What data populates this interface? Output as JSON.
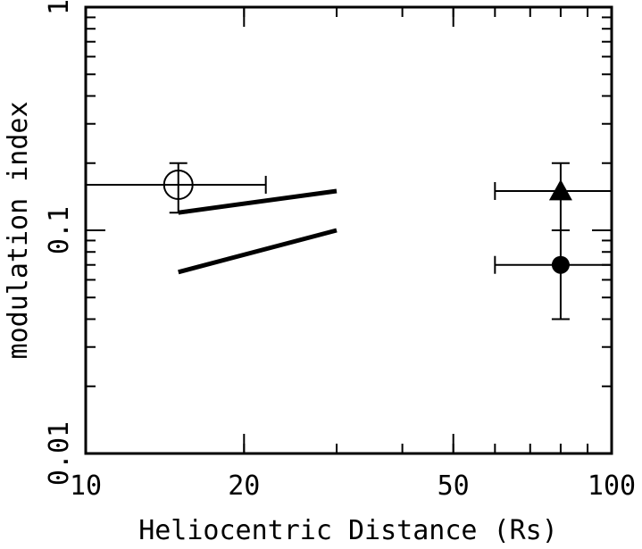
{
  "chart_data": {
    "type": "scatter",
    "title": "",
    "xlabel": "Heliocentric Distance (Rs)",
    "ylabel": "modulation index",
    "xscale": "log",
    "yscale": "log",
    "xlim": [
      10,
      100
    ],
    "ylim": [
      0.01,
      1
    ],
    "x_ticks": [
      {
        "value": 10,
        "label": "10"
      },
      {
        "value": 20,
        "label": "20"
      },
      {
        "value": 50,
        "label": "50"
      },
      {
        "value": 100,
        "label": "100"
      }
    ],
    "y_ticks": [
      {
        "value": 0.01,
        "label": "0.01"
      },
      {
        "value": 0.1,
        "label": "0.1"
      },
      {
        "value": 1,
        "label": "1"
      }
    ],
    "points": [
      {
        "name": "open-circle",
        "marker": "open-circle",
        "x": 15,
        "y": 0.16,
        "xerr": [
          10,
          22
        ],
        "yerr": [
          0.12,
          0.2
        ]
      },
      {
        "name": "filled-triangle",
        "marker": "filled-triangle",
        "x": 80,
        "y": 0.15,
        "xerr": [
          60,
          100
        ],
        "yerr": [
          0.1,
          0.2
        ]
      },
      {
        "name": "filled-circle",
        "marker": "filled-circle",
        "x": 80,
        "y": 0.07,
        "xerr": [
          60,
          100
        ],
        "yerr": [
          0.04,
          0.1
        ]
      }
    ],
    "lines": [
      {
        "name": "upper-line",
        "x": [
          15,
          30
        ],
        "y": [
          0.12,
          0.15
        ]
      },
      {
        "name": "lower-line",
        "x": [
          15,
          30
        ],
        "y": [
          0.065,
          0.1
        ]
      }
    ]
  }
}
